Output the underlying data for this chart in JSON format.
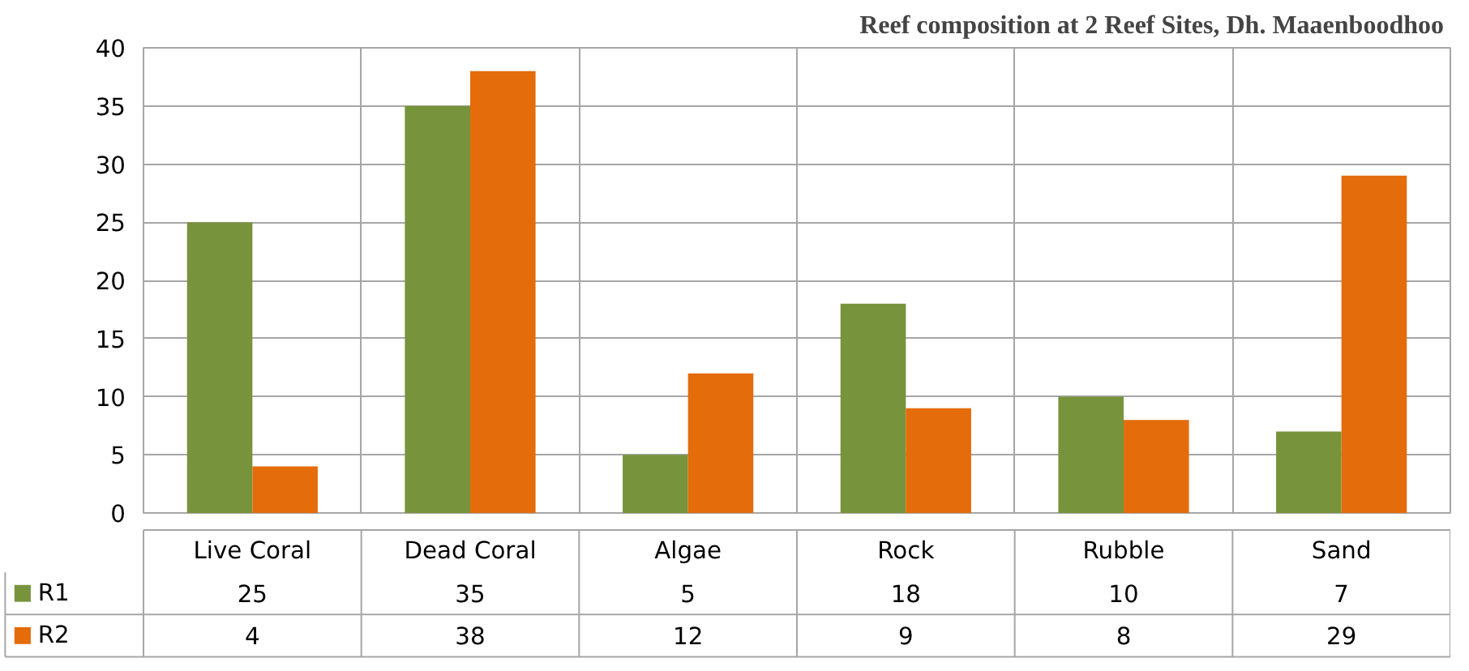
{
  "chart_data": {
    "type": "bar",
    "title": "Reef composition  at 2 Reef Sites, Dh. Maaenboodhoo",
    "categories": [
      "Live Coral",
      "Dead Coral",
      "Algae",
      "Rock",
      "Rubble",
      "Sand"
    ],
    "series": [
      {
        "name": "R1",
        "color": "#77933c",
        "values": [
          25,
          35,
          5,
          18,
          10,
          7
        ]
      },
      {
        "name": "R2",
        "color": "#e46c0a",
        "values": [
          4,
          38,
          12,
          9,
          8,
          29
        ]
      }
    ],
    "ylim": [
      0,
      40
    ],
    "yticks": [
      0,
      5,
      10,
      15,
      20,
      25,
      30,
      35,
      40
    ],
    "grid": true,
    "legend": "bottom",
    "data_labels": true
  }
}
